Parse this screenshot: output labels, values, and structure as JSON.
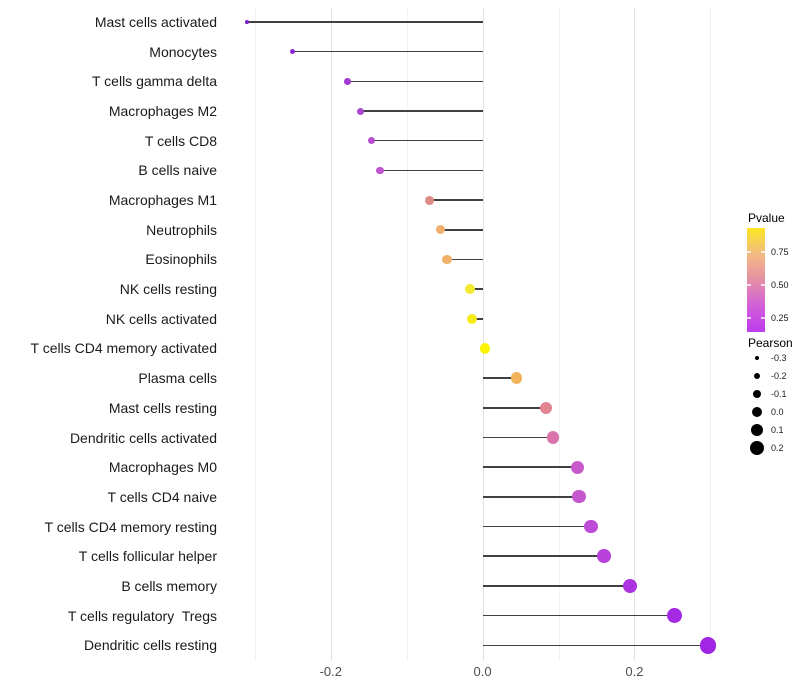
{
  "chart_data": {
    "type": "lollipop",
    "orientation": "horizontal",
    "title": "",
    "xlabel": "",
    "ylabel": "",
    "grid": "vertical-only",
    "points": [
      {
        "label": "Mast cells activated",
        "pearson": -0.31,
        "pvalue_est": 0.02,
        "color": "#7E22CE"
      },
      {
        "label": "Monocytes",
        "pearson": -0.25,
        "pvalue_est": 0.05,
        "color": "#8A28D4"
      },
      {
        "label": "T cells gamma delta",
        "pearson": -0.178,
        "pvalue_est": 0.15,
        "color": "#A439D2"
      },
      {
        "label": "Macrophages M2",
        "pearson": -0.161,
        "pvalue_est": 0.18,
        "color": "#AF46D0"
      },
      {
        "label": "T cells CD8",
        "pearson": -0.146,
        "pvalue_est": 0.21,
        "color": "#B74ED0"
      },
      {
        "label": "B cells naive",
        "pearson": -0.135,
        "pvalue_est": 0.24,
        "color": "#BD53D0"
      },
      {
        "label": "Macrophages M1",
        "pearson": -0.07,
        "pvalue_est": 0.52,
        "color": "#DE8B85"
      },
      {
        "label": "Neutrophils",
        "pearson": -0.055,
        "pvalue_est": 0.65,
        "color": "#EFAD6E"
      },
      {
        "label": "Eosinophils",
        "pearson": -0.047,
        "pvalue_est": 0.67,
        "color": "#F0B16B"
      },
      {
        "label": "NK cells resting",
        "pearson": -0.017,
        "pvalue_est": 0.88,
        "color": "#F2E930"
      },
      {
        "label": "NK cells activated",
        "pearson": -0.014,
        "pvalue_est": 0.92,
        "color": "#F5EC1A"
      },
      {
        "label": "T cells CD4 memory activated",
        "pearson": 0.003,
        "pvalue_est": 0.97,
        "color": "#FAF303"
      },
      {
        "label": "Plasma cells",
        "pearson": 0.045,
        "pvalue_est": 0.68,
        "color": "#F0B35B"
      },
      {
        "label": "Mast cells resting",
        "pearson": 0.084,
        "pvalue_est": 0.55,
        "color": "#E28590"
      },
      {
        "label": "Dendritic cells activated",
        "pearson": 0.093,
        "pvalue_est": 0.45,
        "color": "#D973AB"
      },
      {
        "label": "Macrophages M0",
        "pearson": 0.125,
        "pvalue_est": 0.3,
        "color": "#C75ACB"
      },
      {
        "label": "T cells CD4 naive",
        "pearson": 0.127,
        "pvalue_est": 0.29,
        "color": "#C557CE"
      },
      {
        "label": "T cells CD4 memory resting",
        "pearson": 0.143,
        "pvalue_est": 0.25,
        "color": "#BD4BD6"
      },
      {
        "label": "T cells follicular helper",
        "pearson": 0.16,
        "pvalue_est": 0.22,
        "color": "#B641DA"
      },
      {
        "label": "B cells memory",
        "pearson": 0.194,
        "pvalue_est": 0.17,
        "color": "#AC33DF"
      },
      {
        "label": "T cells regulatory  Tregs",
        "pearson": 0.253,
        "pvalue_est": 0.12,
        "color": "#A329E3"
      },
      {
        "label": "Dendritic cells resting",
        "pearson": 0.297,
        "pvalue_est": 0.1,
        "color": "#A125E5"
      }
    ],
    "x_axis": {
      "range": [
        -0.345,
        0.33
      ],
      "major_ticks": [
        -0.2,
        0.0,
        0.2
      ],
      "tick_labels": [
        "-0.2",
        "0.0",
        "0.2"
      ],
      "minor_gridlines": [
        -0.3,
        -0.1,
        0.1,
        0.3
      ],
      "major_gridlines": [
        -0.2,
        0.0,
        0.2
      ]
    },
    "stem_color": "#404040",
    "legend": {
      "position": "right",
      "pvalue": {
        "title": "Pvalue",
        "tick_labels": [
          "0.75",
          "0.50",
          "0.25"
        ],
        "tick_values": [
          0.75,
          0.5,
          0.25
        ],
        "gradient_stops": [
          "#FCE724",
          "#F3BB80",
          "#E68FA6",
          "#D05FD8",
          "#BE3BEE"
        ]
      },
      "pearson": {
        "title": "Pearson",
        "tick_labels": [
          "-0.3",
          "-0.2",
          "-0.1",
          "0.0",
          "0.1",
          "0.2"
        ],
        "tick_values": [
          -0.3,
          -0.2,
          -0.1,
          0.0,
          0.1,
          0.2
        ],
        "dot_color": "#000000"
      }
    }
  }
}
